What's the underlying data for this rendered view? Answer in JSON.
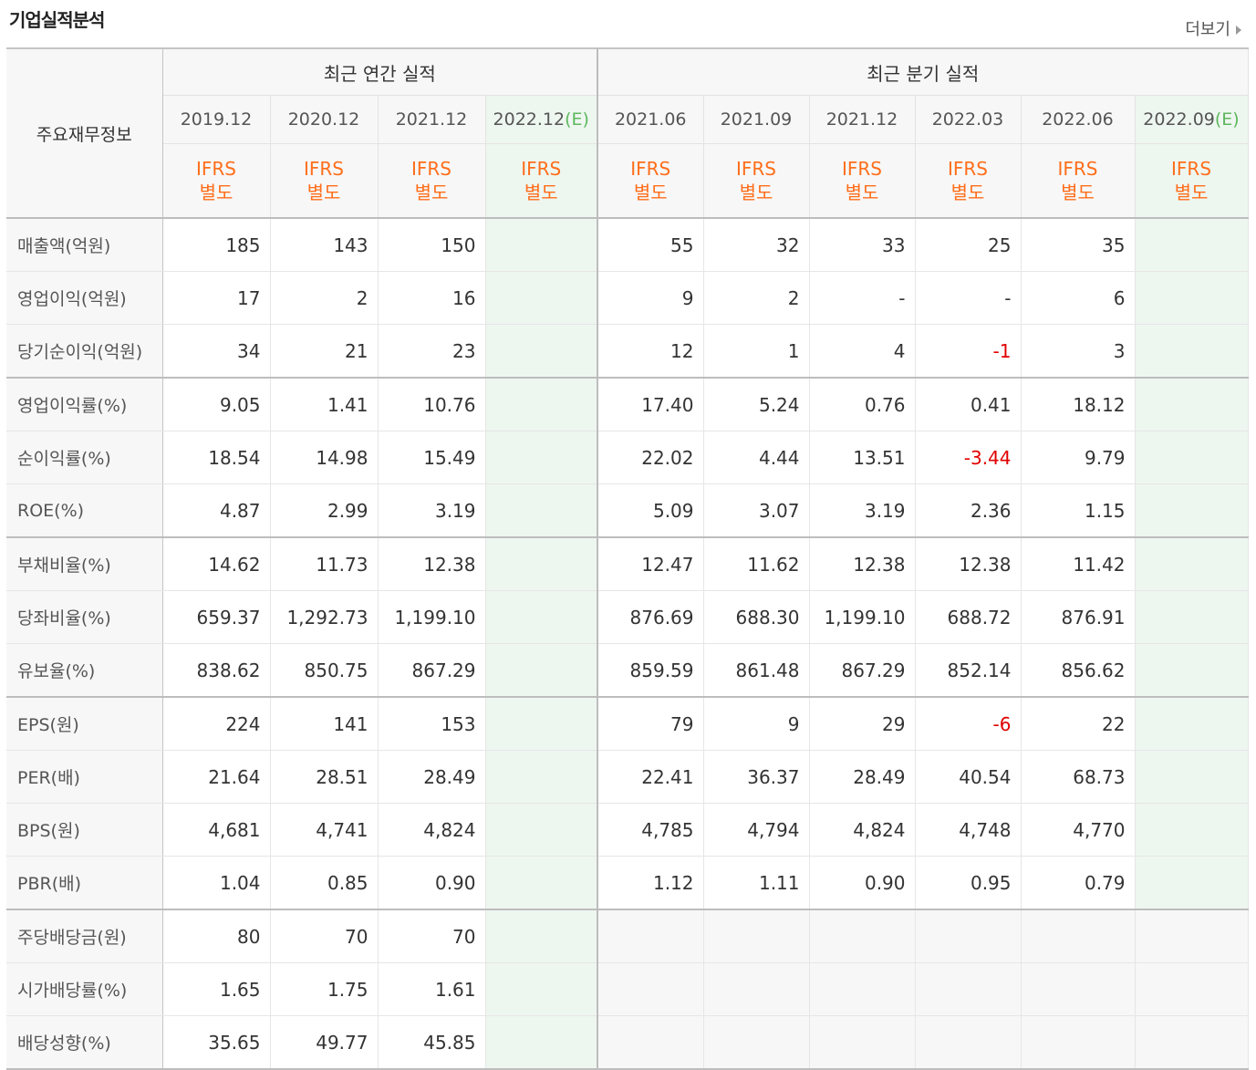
{
  "title": "기업실적분석",
  "more_label": "더보기",
  "header": {
    "row_label": "주요재무정보",
    "annual_group": "최근 연간 실적",
    "quarter_group": "최근 분기 실적",
    "annual_dates": [
      "2019.12",
      "2020.12",
      "2021.12",
      "2022.12"
    ],
    "quarter_dates": [
      "2021.06",
      "2021.09",
      "2021.12",
      "2022.03",
      "2022.06",
      "2022.09"
    ],
    "estimate_mark": "(E)",
    "std_line1": "IFRS",
    "std_line2": "별도"
  },
  "rows": [
    {
      "label": "매출액(억원)",
      "annual": [
        "185",
        "143",
        "150",
        ""
      ],
      "quarter": [
        "55",
        "32",
        "33",
        "25",
        "35",
        ""
      ]
    },
    {
      "label": "영업이익(억원)",
      "annual": [
        "17",
        "2",
        "16",
        ""
      ],
      "quarter": [
        "9",
        "2",
        "-",
        "-",
        "6",
        ""
      ]
    },
    {
      "label": "당기순이익(억원)",
      "annual": [
        "34",
        "21",
        "23",
        ""
      ],
      "quarter": [
        "12",
        "1",
        "4",
        "-1",
        "3",
        ""
      ]
    },
    {
      "label": "영업이익률(%)",
      "annual": [
        "9.05",
        "1.41",
        "10.76",
        ""
      ],
      "quarter": [
        "17.40",
        "5.24",
        "0.76",
        "0.41",
        "18.12",
        ""
      ]
    },
    {
      "label": "순이익률(%)",
      "annual": [
        "18.54",
        "14.98",
        "15.49",
        ""
      ],
      "quarter": [
        "22.02",
        "4.44",
        "13.51",
        "-3.44",
        "9.79",
        ""
      ]
    },
    {
      "label": "ROE(%)",
      "annual": [
        "4.87",
        "2.99",
        "3.19",
        ""
      ],
      "quarter": [
        "5.09",
        "3.07",
        "3.19",
        "2.36",
        "1.15",
        ""
      ]
    },
    {
      "label": "부채비율(%)",
      "annual": [
        "14.62",
        "11.73",
        "12.38",
        ""
      ],
      "quarter": [
        "12.47",
        "11.62",
        "12.38",
        "12.38",
        "11.42",
        ""
      ]
    },
    {
      "label": "당좌비율(%)",
      "annual": [
        "659.37",
        "1,292.73",
        "1,199.10",
        ""
      ],
      "quarter": [
        "876.69",
        "688.30",
        "1,199.10",
        "688.72",
        "876.91",
        ""
      ]
    },
    {
      "label": "유보율(%)",
      "annual": [
        "838.62",
        "850.75",
        "867.29",
        ""
      ],
      "quarter": [
        "859.59",
        "861.48",
        "867.29",
        "852.14",
        "856.62",
        ""
      ]
    },
    {
      "label": "EPS(원)",
      "annual": [
        "224",
        "141",
        "153",
        ""
      ],
      "quarter": [
        "79",
        "9",
        "29",
        "-6",
        "22",
        ""
      ]
    },
    {
      "label": "PER(배)",
      "annual": [
        "21.64",
        "28.51",
        "28.49",
        ""
      ],
      "quarter": [
        "22.41",
        "36.37",
        "28.49",
        "40.54",
        "68.73",
        ""
      ]
    },
    {
      "label": "BPS(원)",
      "annual": [
        "4,681",
        "4,741",
        "4,824",
        ""
      ],
      "quarter": [
        "4,785",
        "4,794",
        "4,824",
        "4,748",
        "4,770",
        ""
      ]
    },
    {
      "label": "PBR(배)",
      "annual": [
        "1.04",
        "0.85",
        "0.90",
        ""
      ],
      "quarter": [
        "1.12",
        "1.11",
        "0.90",
        "0.95",
        "0.79",
        ""
      ]
    },
    {
      "label": "주당배당금(원)",
      "annual": [
        "80",
        "70",
        "70",
        ""
      ],
      "quarter": [
        "",
        "",
        "",
        "",
        "",
        ""
      ]
    },
    {
      "label": "시가배당률(%)",
      "annual": [
        "1.65",
        "1.75",
        "1.61",
        ""
      ],
      "quarter": [
        "",
        "",
        "",
        "",
        "",
        ""
      ]
    },
    {
      "label": "배당성향(%)",
      "annual": [
        "35.65",
        "49.77",
        "45.85",
        ""
      ],
      "quarter": [
        "",
        "",
        "",
        "",
        "",
        ""
      ]
    }
  ],
  "colors": {
    "ifrs": "#ff6e1a",
    "negative": "#e00000",
    "estimate_mark": "#5cb85c",
    "estimate_bg": "#eef6f0"
  }
}
